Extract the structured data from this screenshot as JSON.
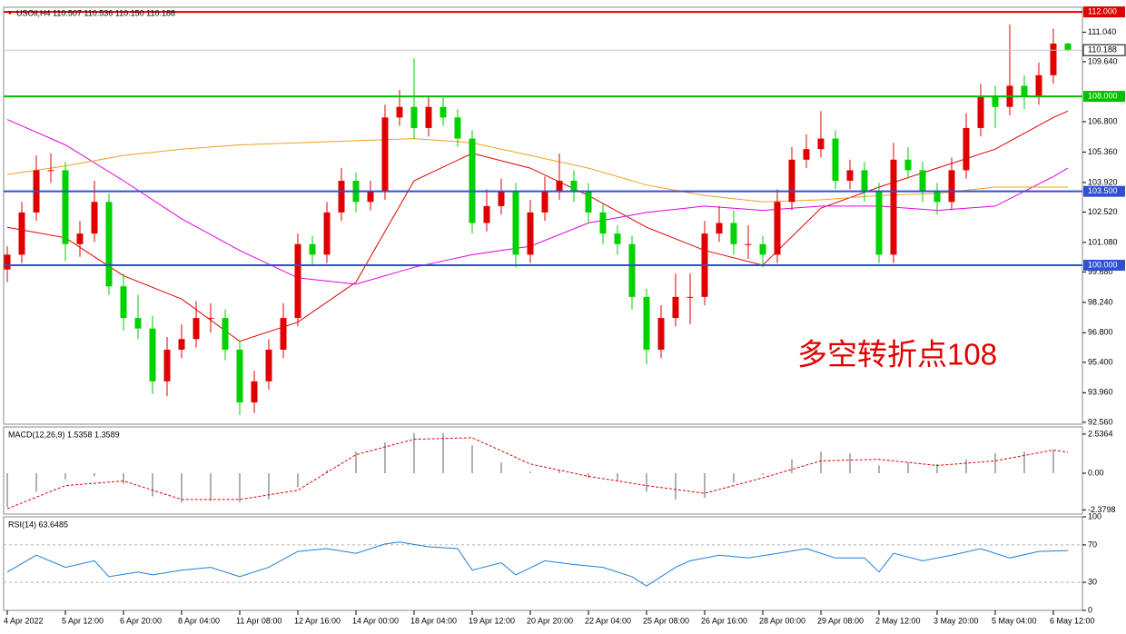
{
  "chart_data": [
    {
      "type": "candlestick",
      "title": "USOil,H4 110.507 110.536 110.150 110.188",
      "annotation": "多空转折点108",
      "categories": [
        "4 Apr 2022",
        null,
        null,
        null,
        "5 Apr 12:00",
        null,
        null,
        null,
        "6 Apr 20:00",
        null,
        null,
        null,
        "8 Apr 04:00",
        null,
        null,
        null,
        "11 Apr 08:00",
        null,
        null,
        null,
        "12 Apr 16:00",
        null,
        null,
        null,
        "14 Apr 00:00",
        null,
        null,
        null,
        "18 Apr 04:00",
        null,
        null,
        null,
        "19 Apr 12:00",
        null,
        null,
        null,
        "20 Apr 20:00",
        null,
        null,
        null,
        "22 Apr 04:00",
        null,
        null,
        null,
        "25 Apr 08:00",
        null,
        null,
        null,
        "26 Apr 16:00",
        null,
        null,
        null,
        "28 Apr 00:00",
        null,
        null,
        null,
        "29 Apr 08:00",
        null,
        null,
        null,
        "2 May 12:00",
        null,
        null,
        null,
        "3 May 20:00",
        null,
        null,
        null,
        "5 May 04:00",
        null,
        null,
        null,
        "6 May 12:00",
        null
      ],
      "ohlc": [
        [
          99.8,
          100.9,
          99.2,
          100.5
        ],
        [
          100.5,
          103.0,
          100.1,
          102.5
        ],
        [
          102.5,
          105.2,
          102.1,
          104.5
        ],
        [
          104.5,
          105.3,
          103.9,
          104.5
        ],
        [
          104.5,
          104.9,
          100.2,
          101
        ],
        [
          101,
          102.1,
          100.4,
          101.5
        ],
        [
          101.5,
          104.0,
          101.1,
          103
        ],
        [
          103,
          103.4,
          98.6,
          99
        ],
        [
          99,
          99.6,
          96.9,
          97.5
        ],
        [
          97.5,
          98.6,
          96.5,
          97
        ],
        [
          97,
          97.6,
          93.9,
          94.5
        ],
        [
          94.5,
          96.6,
          93.8,
          96
        ],
        [
          96,
          97.2,
          95.6,
          96.5
        ],
        [
          96.5,
          98.3,
          96.1,
          97.5
        ],
        [
          97.5,
          98.2,
          96.8,
          97.5
        ],
        [
          97.5,
          97.9,
          95.5,
          96
        ],
        [
          96,
          96.4,
          92.9,
          93.5
        ],
        [
          93.5,
          95.0,
          93.0,
          94.5
        ],
        [
          94.5,
          96.5,
          94.1,
          96
        ],
        [
          96,
          98.2,
          95.6,
          97.5
        ],
        [
          97.5,
          101.5,
          97.1,
          101
        ],
        [
          101,
          101.4,
          100.0,
          100.5
        ],
        [
          100.5,
          103.0,
          100.1,
          102.5
        ],
        [
          102.5,
          104.6,
          102.1,
          104
        ],
        [
          104,
          104.4,
          102.5,
          103
        ],
        [
          103,
          104.0,
          102.6,
          103.5
        ],
        [
          103.5,
          107.6,
          103.1,
          107
        ],
        [
          107,
          108.3,
          106.6,
          107.5
        ],
        [
          107.5,
          109.8,
          106.0,
          106.5
        ],
        [
          106.5,
          108.0,
          106.1,
          107.5
        ],
        [
          107.5,
          108.0,
          106.6,
          107
        ],
        [
          107,
          107.4,
          105.6,
          106
        ],
        [
          106,
          106.4,
          101.5,
          102
        ],
        [
          102,
          103.6,
          101.6,
          102.8
        ],
        [
          102.8,
          104.1,
          102.4,
          103.5
        ],
        [
          103.5,
          103.9,
          99.9,
          100.5
        ],
        [
          100.5,
          103.1,
          100.1,
          102.5
        ],
        [
          102.5,
          104.2,
          102.1,
          103.5
        ],
        [
          103.5,
          105.3,
          103.1,
          104
        ],
        [
          104,
          104.5,
          103.0,
          103.5
        ],
        [
          103.5,
          103.9,
          102.0,
          102.5
        ],
        [
          102.5,
          102.9,
          101.0,
          101.5
        ],
        [
          101.5,
          101.9,
          100.5,
          101
        ],
        [
          101,
          101.4,
          97.9,
          98.5
        ],
        [
          98.5,
          98.9,
          95.3,
          96
        ],
        [
          96,
          98.1,
          95.6,
          97.5
        ],
        [
          97.5,
          99.6,
          97.1,
          98.5
        ],
        [
          98.5,
          99.6,
          97.2,
          98.5
        ],
        [
          98.5,
          102.1,
          98.1,
          101.5
        ],
        [
          101.5,
          102.8,
          101.1,
          102
        ],
        [
          102,
          102.6,
          100.5,
          101
        ],
        [
          101,
          101.9,
          100.3,
          101
        ],
        [
          101,
          101.4,
          99.9,
          100.5
        ],
        [
          100.5,
          103.6,
          100.1,
          103
        ],
        [
          103,
          105.6,
          102.6,
          105
        ],
        [
          105,
          106.2,
          104.6,
          105.5
        ],
        [
          105.5,
          107.3,
          105.1,
          106
        ],
        [
          106,
          106.4,
          103.6,
          104
        ],
        [
          104,
          105.0,
          103.6,
          104.5
        ],
        [
          104.5,
          104.9,
          103.0,
          103.5
        ],
        [
          103.5,
          103.9,
          100.1,
          100.5
        ],
        [
          100.5,
          105.8,
          100.1,
          105
        ],
        [
          105,
          105.6,
          104.1,
          104.5
        ],
        [
          104.5,
          104.9,
          103.0,
          103.5
        ],
        [
          103.5,
          103.9,
          102.4,
          103
        ],
        [
          103,
          105.1,
          102.6,
          104.5
        ],
        [
          104.5,
          107.2,
          104.1,
          106.5
        ],
        [
          106.5,
          108.6,
          106.1,
          108
        ],
        [
          108,
          108.5,
          106.5,
          107.5
        ],
        [
          107.5,
          111.4,
          107.1,
          108.5
        ],
        [
          108.5,
          109.0,
          107.4,
          108
        ],
        [
          108,
          109.6,
          107.6,
          109
        ],
        [
          109,
          111.2,
          108.6,
          110.5
        ],
        [
          110.5,
          110.536,
          110.15,
          110.188
        ]
      ],
      "up_color": "#e00000",
      "down_color": "#00d200",
      "xlim": [
        -0.25,
        74
      ],
      "ylim": [
        92.47,
        112.22
      ],
      "yticks": [
        {
          "value": 111.04,
          "label": "111.040"
        },
        {
          "value": 109.64,
          "label": "109.640"
        },
        {
          "value": 106.8,
          "label": "106.800"
        },
        {
          "value": 105.36,
          "label": "105.360"
        },
        {
          "value": 103.92,
          "label": "103.920"
        },
        {
          "value": 102.52,
          "label": "102.520"
        },
        {
          "value": 101.08,
          "label": "101.080"
        },
        {
          "value": 99.68,
          "label": "99.680"
        },
        {
          "value": 98.24,
          "label": "98.240"
        },
        {
          "value": 96.8,
          "label": "96.800"
        },
        {
          "value": 95.4,
          "label": "95.400"
        },
        {
          "value": 93.96,
          "label": "93.960"
        },
        {
          "value": 92.56,
          "label": "92.560"
        }
      ],
      "levels": [
        {
          "value": 112,
          "label": "112.000",
          "color": "#e00000"
        },
        {
          "value": 108,
          "label": "108.000",
          "color": "#00c000"
        },
        {
          "value": 103.5,
          "label": "103.500",
          "color": "#3050d0"
        },
        {
          "value": 100,
          "label": "100.000",
          "color": "#3050d0"
        }
      ],
      "last_price": 110.188,
      "overlays": [
        {
          "color": "#e00000",
          "x": [
            0,
            4,
            8,
            12,
            16,
            20,
            24,
            28,
            32,
            36,
            40,
            44,
            48,
            52,
            56,
            60,
            64,
            68,
            72,
            73
          ],
          "values": [
            101.8,
            101.3,
            99.5,
            98.4,
            96.4,
            97.3,
            99.2,
            104,
            105.3,
            104.6,
            103.3,
            101.8,
            100.7,
            100,
            102.7,
            103.7,
            104.6,
            105.5,
            107,
            107.3
          ]
        },
        {
          "color": "#e000e0",
          "x": [
            0,
            4,
            8,
            12,
            16,
            20,
            24,
            28,
            32,
            36,
            40,
            44,
            48,
            52,
            56,
            60,
            64,
            68,
            72,
            73
          ],
          "values": [
            106.9,
            105.7,
            104,
            102.2,
            100.7,
            99.4,
            99.1,
            99.9,
            100.5,
            100.9,
            102,
            102.5,
            102.8,
            102.6,
            102.8,
            102.8,
            102.6,
            102.8,
            104.2,
            104.6
          ]
        },
        {
          "color": "#f0a020",
          "x": [
            0,
            4,
            8,
            12,
            16,
            20,
            24,
            28,
            32,
            36,
            40,
            44,
            48,
            52,
            56,
            60,
            64,
            68,
            72,
            73
          ],
          "values": [
            104.3,
            104.7,
            105.2,
            105.5,
            105.7,
            105.8,
            105.9,
            106,
            105.8,
            105.2,
            104.6,
            103.8,
            103.3,
            103,
            103.1,
            103.3,
            103.4,
            103.7,
            103.7,
            103.7
          ]
        }
      ]
    },
    {
      "type": "macd",
      "title": "MACD(12,26,9) 1.5358 1.3589",
      "xlim": [
        -0.25,
        74
      ],
      "ylim": [
        -2.65,
        3.0
      ],
      "yticks": [
        2.5364,
        {
          "value": 0,
          "label": "0.00"
        },
        -2.3798
      ],
      "hist_color": "#b0b0b0",
      "hist_x": [
        0,
        2,
        4,
        6,
        8,
        10,
        12,
        14,
        16,
        18,
        20,
        22,
        24,
        26,
        28,
        30,
        32,
        34,
        36,
        38,
        40,
        42,
        44,
        46,
        48,
        50,
        52,
        54,
        56,
        58,
        60,
        62,
        64,
        66,
        68,
        70,
        72
      ],
      "hist": [
        -2.2,
        -1.2,
        -0.4,
        -0.2,
        -0.7,
        -1.5,
        -1.9,
        -1.8,
        -1.9,
        -1.7,
        -0.9,
        0.2,
        1.4,
        2.0,
        2.6,
        2.6,
        1.8,
        0.7,
        0.1,
        0.2,
        -0.3,
        -0.5,
        -1.2,
        -1.7,
        -1.6,
        -0.6,
        -0.1,
        0.9,
        1.4,
        1.3,
        0.5,
        0.7,
        0.6,
        0.9,
        1.3,
        1.4,
        1.5
      ],
      "signal_color": "#e00000",
      "signal_x": [
        0,
        4,
        8,
        12,
        16,
        20,
        24,
        28,
        32,
        36,
        40,
        44,
        48,
        52,
        56,
        60,
        64,
        68,
        72,
        73
      ],
      "signal": [
        -2.3,
        -0.8,
        -0.5,
        -1.7,
        -1.7,
        -1.1,
        1.2,
        2.2,
        2.3,
        0.6,
        -0.2,
        -0.8,
        -1.3,
        -0.3,
        0.8,
        0.9,
        0.5,
        0.8,
        1.5,
        1.36
      ]
    },
    {
      "type": "line",
      "title": "RSI(14) 63.6485",
      "xlim": [
        -0.25,
        74
      ],
      "ylim": [
        0,
        100
      ],
      "yticks": [
        100,
        70,
        30,
        0
      ],
      "levels": [
        70,
        30
      ],
      "color": "#1e7fd8",
      "x": [
        0,
        2,
        4,
        6,
        7,
        9,
        10,
        12,
        14,
        16,
        18,
        20,
        22,
        24,
        26,
        27,
        29,
        31,
        32,
        34,
        35,
        37,
        39,
        41,
        43,
        44,
        46,
        47,
        49,
        51,
        53,
        55,
        57,
        59,
        60,
        61,
        63,
        65,
        67,
        69,
        71,
        73
      ],
      "values": [
        41,
        59,
        46,
        53,
        36,
        41,
        38,
        43,
        46,
        36,
        46,
        63,
        66,
        61,
        71,
        73,
        68,
        66,
        43,
        51,
        38,
        53,
        49,
        46,
        36,
        26,
        46,
        53,
        59,
        56,
        61,
        66,
        56,
        56,
        41,
        61,
        53,
        59,
        66,
        56,
        63,
        64
      ]
    }
  ]
}
